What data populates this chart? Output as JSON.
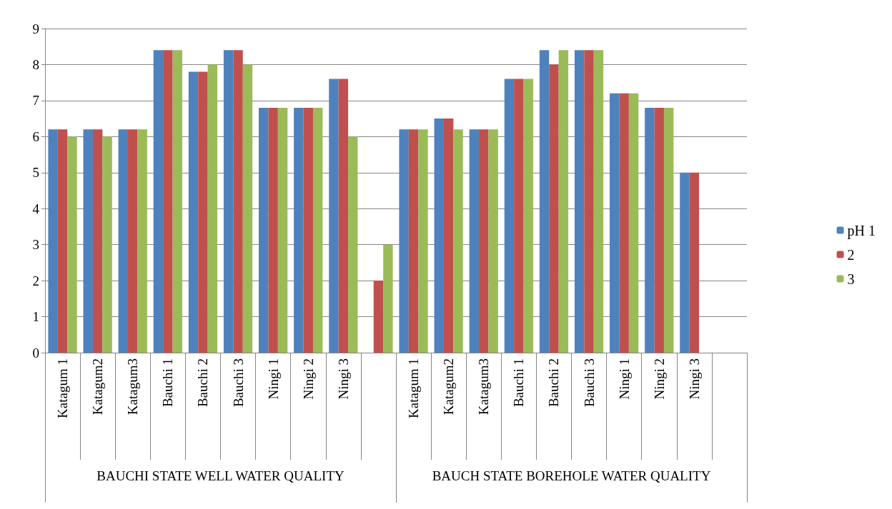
{
  "chart_data": {
    "type": "bar",
    "categories": [
      "Katagum 1",
      "Katagum2",
      "Katagum3",
      "Bauchi 1",
      "Bauchi 2",
      "Bauchi 3",
      "Ningi 1",
      "Ningi 2",
      "Ningi 3",
      null,
      "Katagum 1",
      "Katagum2",
      "Katagum3",
      "Bauchi 1",
      "Bauchi 2",
      "Bauchi 3",
      "Ningi 1",
      "Ningi 2",
      "Ningi 3",
      null
    ],
    "series": [
      {
        "name": "pH 1",
        "color": "#4f81bd",
        "values": [
          6.2,
          6.2,
          6.2,
          8.4,
          7.8,
          8.4,
          6.8,
          6.8,
          7.6,
          null,
          6.2,
          6.5,
          6.2,
          7.6,
          8.4,
          8.4,
          7.2,
          6.8,
          5.0,
          null
        ]
      },
      {
        "name": "2",
        "color": "#c0504d",
        "values": [
          6.2,
          6.2,
          6.2,
          8.4,
          7.8,
          8.4,
          6.8,
          6.8,
          7.6,
          2,
          6.2,
          6.5,
          6.2,
          7.6,
          8.0,
          8.4,
          7.2,
          6.8,
          5.0,
          null
        ]
      },
      {
        "name": "3",
        "color": "#9bbb59",
        "values": [
          6.0,
          6.0,
          6.2,
          8.4,
          8.0,
          8.0,
          6.8,
          6.8,
          6.0,
          3,
          6.2,
          6.2,
          6.2,
          7.6,
          8.4,
          8.4,
          7.2,
          6.8,
          null,
          null
        ]
      }
    ],
    "annotations": [
      "BAUCHI STATE WELL WATER QUALITY",
      "BAUCH STATE BOREHOLE WATER QUALITY"
    ],
    "ylim": [
      0,
      9
    ],
    "yticks": [
      0,
      1,
      2,
      3,
      4,
      5,
      6,
      7,
      8,
      9
    ],
    "grid": "y",
    "legend": "right"
  }
}
